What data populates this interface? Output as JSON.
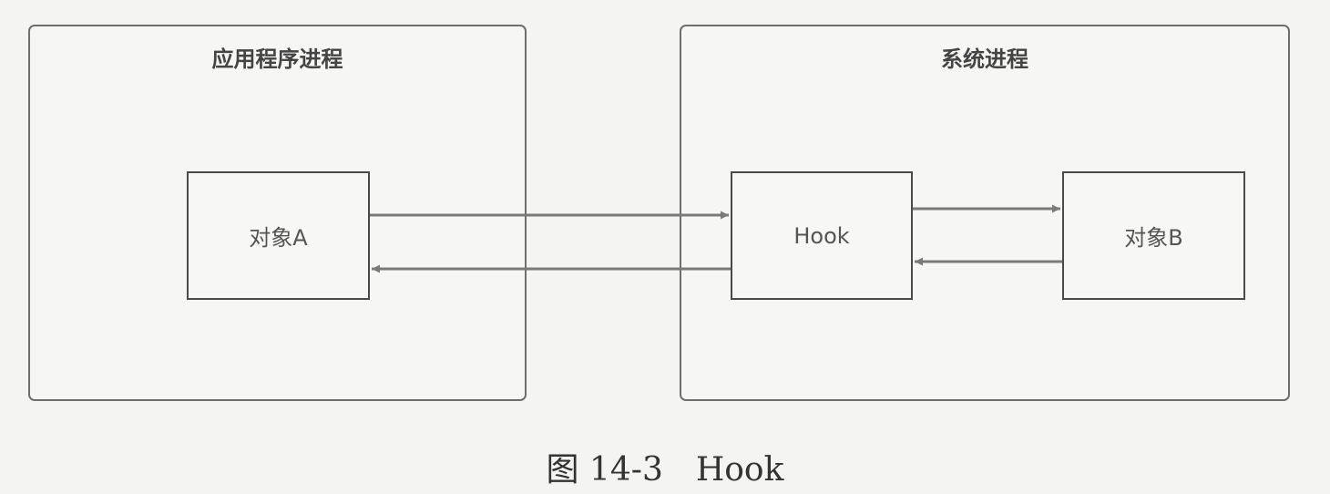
{
  "app_process": {
    "title": "应用程序进程",
    "object_label": "对象A"
  },
  "system_process": {
    "title": "系统进程",
    "hook_label": "Hook",
    "object_label": "对象B"
  },
  "caption": "图 14-3　Hook",
  "colors": {
    "border": "#6e6e6e",
    "box_border": "#4a4a4a",
    "arrow": "#7a7a7a",
    "background": "#f4f4f2"
  }
}
